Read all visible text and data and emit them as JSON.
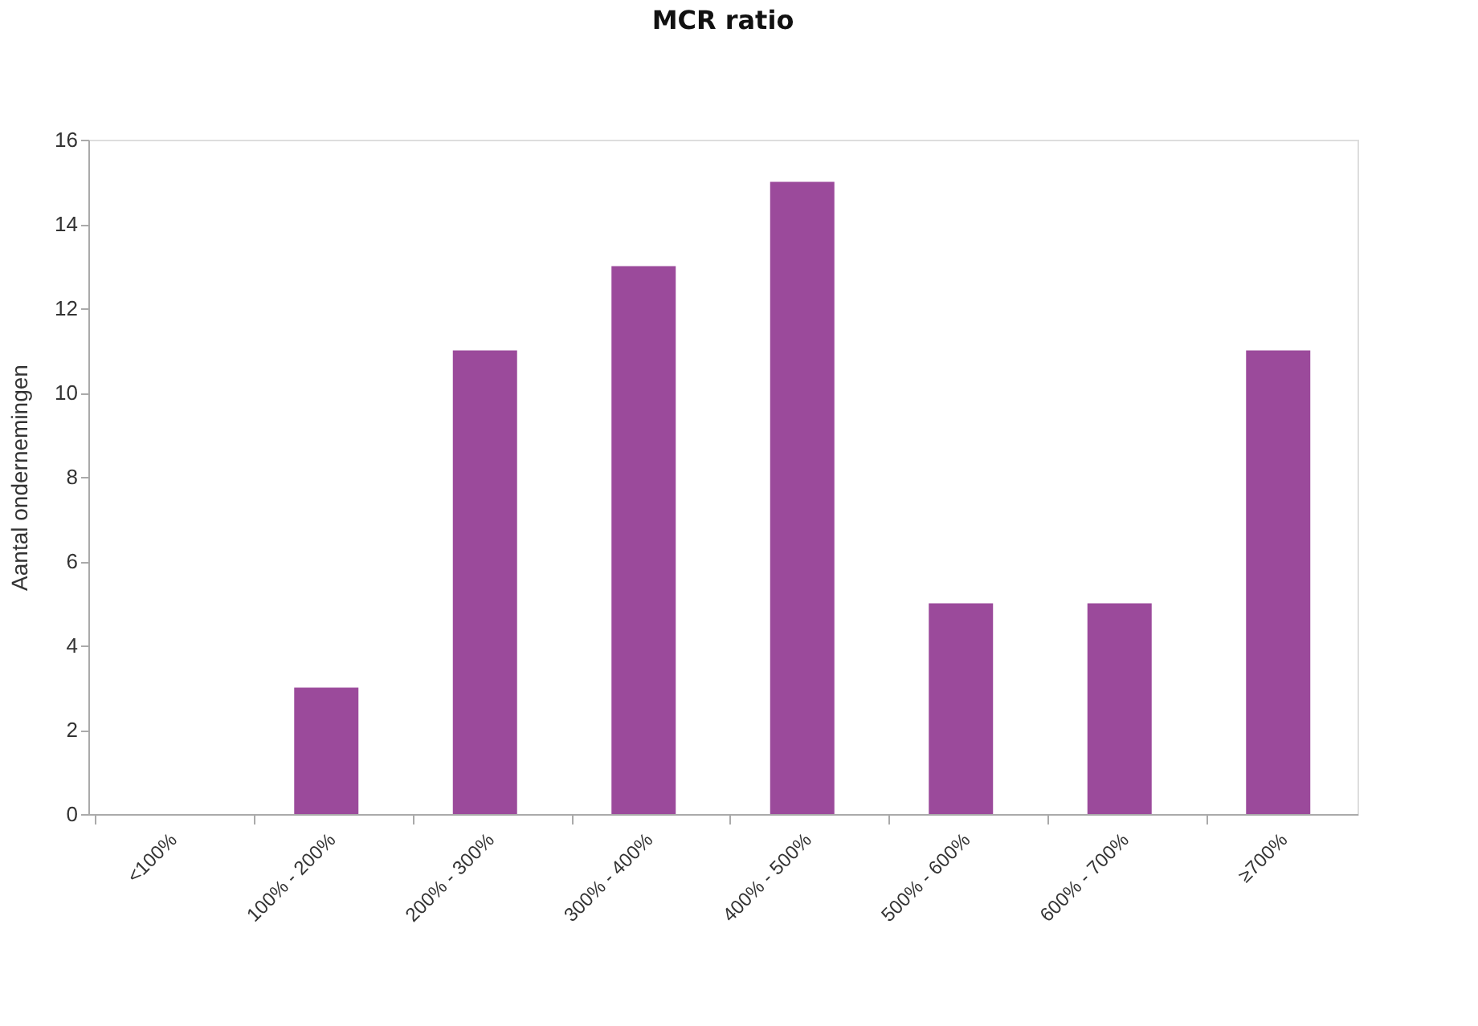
{
  "chart_data": {
    "type": "bar",
    "title": "MCR ratio",
    "ylabel": "Aantal ondernemingen",
    "categories": [
      "<100%",
      "100% - 200%",
      "200% - 300%",
      "300% - 400%",
      "400% - 500%",
      "500% - 600%",
      "600% - 700%",
      "≥700%"
    ],
    "values": [
      0,
      3,
      11,
      13,
      15,
      5,
      5,
      11
    ],
    "color": "#9b4a9b",
    "ylim": [
      0,
      16
    ],
    "yticks": [
      0,
      2,
      4,
      6,
      8,
      10,
      12,
      14,
      16
    ],
    "grid": false
  }
}
